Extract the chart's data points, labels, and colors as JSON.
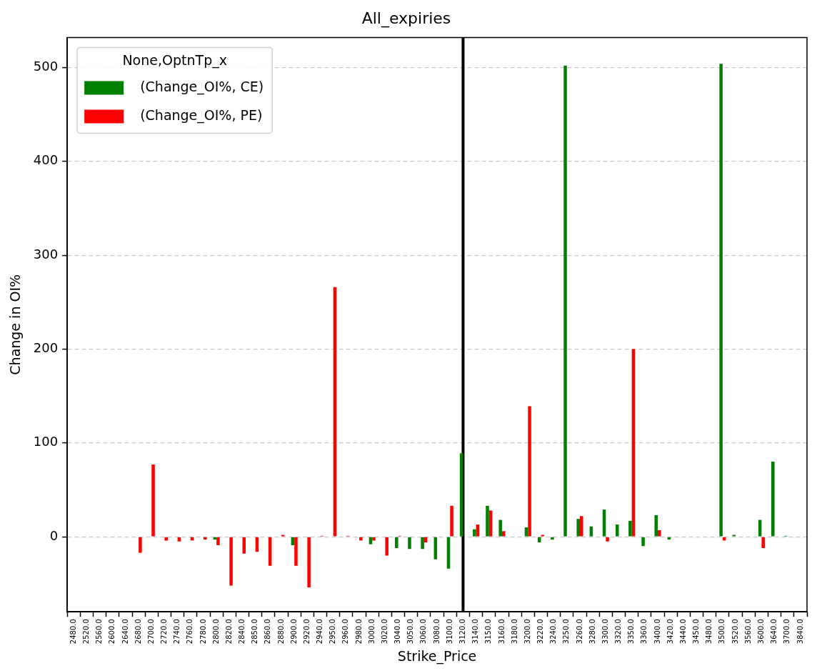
{
  "chart_data": {
    "type": "bar",
    "title": "All_expiries",
    "xlabel": "Strike_Price",
    "ylabel": "Change in OI%",
    "legend_title": "None,OptnTp_x",
    "legend": "top left",
    "grid": "y",
    "categories": [
      "2480.0",
      "2520.0",
      "2560.0",
      "2600.0",
      "2640.0",
      "2680.0",
      "2700.0",
      "2720.0",
      "2740.0",
      "2760.0",
      "2780.0",
      "2800.0",
      "2820.0",
      "2840.0",
      "2850.0",
      "2860.0",
      "2880.0",
      "2900.0",
      "2920.0",
      "2940.0",
      "2950.0",
      "2960.0",
      "2980.0",
      "3000.0",
      "3020.0",
      "3040.0",
      "3050.0",
      "3060.0",
      "3080.0",
      "3100.0",
      "3120.0",
      "3140.0",
      "3150.0",
      "3160.0",
      "3180.0",
      "3200.0",
      "3220.0",
      "3240.0",
      "3250.0",
      "3260.0",
      "3280.0",
      "3300.0",
      "3320.0",
      "3350.0",
      "3360.0",
      "3400.0",
      "3420.0",
      "3440.0",
      "3450.0",
      "3480.0",
      "3500.0",
      "3520.0",
      "3560.0",
      "3600.0",
      "3640.0",
      "3700.0",
      "3840.0"
    ],
    "series": [
      {
        "name": "(Change_OI%, CE)",
        "color": "#008000",
        "values": [
          null,
          null,
          null,
          null,
          null,
          null,
          null,
          null,
          null,
          null,
          null,
          -3,
          null,
          null,
          null,
          null,
          null,
          -9,
          null,
          null,
          null,
          null,
          null,
          -8,
          null,
          -12,
          -13,
          -13,
          -24,
          -34,
          89,
          8,
          33,
          18,
          null,
          10,
          -6,
          -3,
          502,
          19,
          11,
          29,
          13,
          17,
          -10,
          23,
          -3,
          null,
          null,
          null,
          504,
          2,
          null,
          18,
          80,
          1,
          null
        ]
      },
      {
        "name": "(Change_OI%, PE)",
        "color": "#ff0000",
        "values": [
          null,
          null,
          null,
          null,
          null,
          -17,
          77,
          -4,
          -5,
          -4,
          -3,
          -9,
          -52,
          -18,
          -16,
          -31,
          2,
          -31,
          -54,
          1,
          266,
          1,
          -4,
          -4,
          -20,
          1,
          null,
          -6,
          null,
          33,
          null,
          13,
          28,
          6,
          null,
          139,
          2,
          null,
          null,
          22,
          null,
          -5,
          null,
          200,
          null,
          7,
          null,
          null,
          null,
          null,
          -4,
          null,
          null,
          -12,
          null,
          null,
          null
        ]
      }
    ],
    "ylim": [
      -80,
      532
    ],
    "yticks": [
      0,
      100,
      200,
      300,
      400,
      500
    ],
    "ref_lines": [
      {
        "axis": "x",
        "value": "3120.0",
        "color": "#000000"
      }
    ]
  }
}
